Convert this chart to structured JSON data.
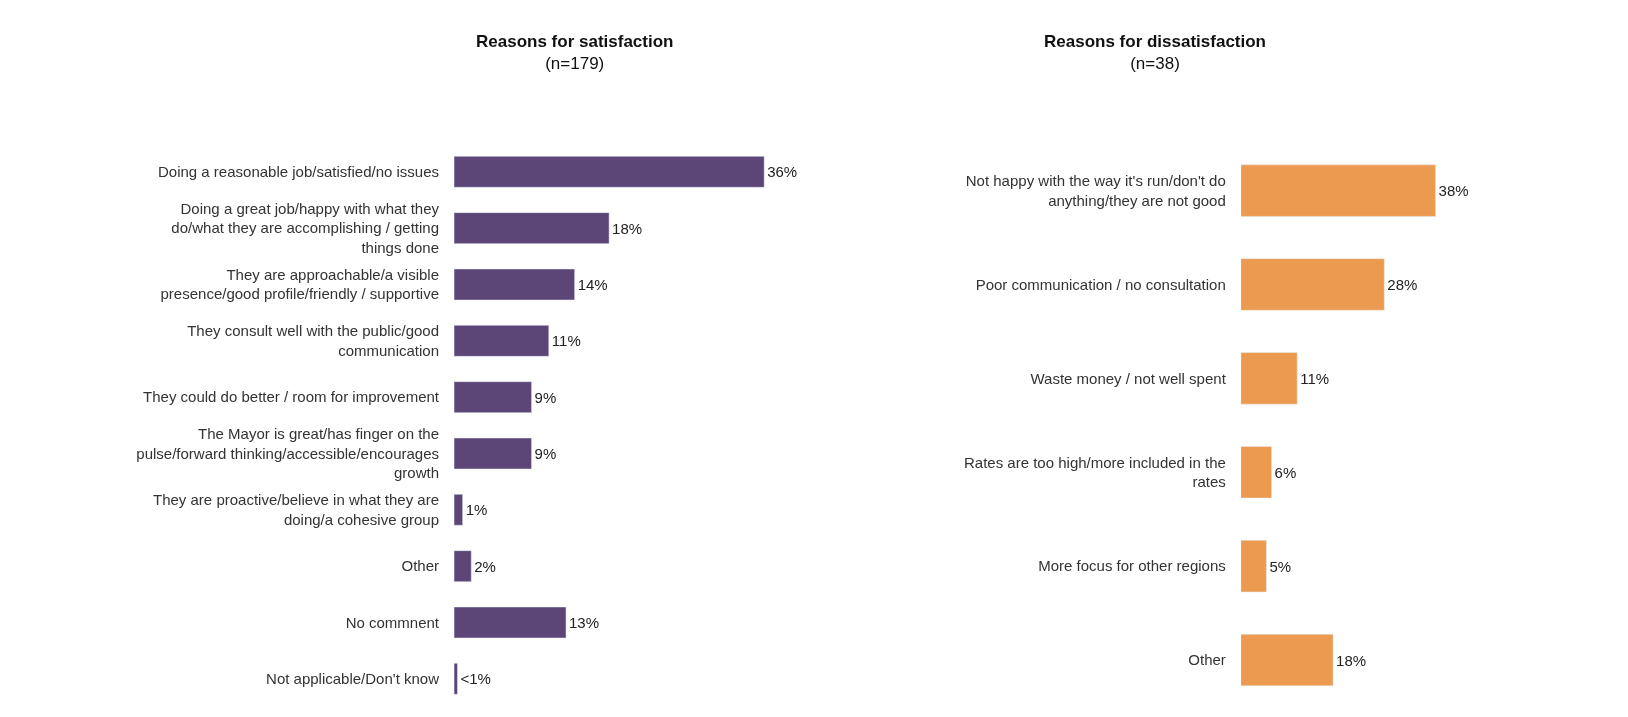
{
  "chart_data": [
    {
      "type": "bar",
      "orientation": "horizontal",
      "title": "Reasons for satisfaction",
      "subtitle": "(n=179)",
      "categories": [
        "Doing a reasonable job/satisfied/no issues",
        "Doing a great job/happy with what they do/what they are accomplishing / getting things done",
        "They are approachable/a visible presence/good profile/friendly / supportive",
        "They consult well with the public/good communication",
        "They could do better / room for improvement",
        "The Mayor is great/has finger on the pulse/forward thinking/accessible/encourages growth",
        "They are proactive/believe in what they are doing/a cohesive group",
        "Other",
        "No commnent",
        "Not applicable/Don't know"
      ],
      "values": [
        36,
        18,
        14,
        11,
        9,
        9,
        1,
        2,
        13,
        0.4
      ],
      "value_labels": [
        "36%",
        "18%",
        "14%",
        "11%",
        "9%",
        "9%",
        "1%",
        "2%",
        "13%",
        "<1%"
      ],
      "color": "#5c4677",
      "legend": false
    },
    {
      "type": "bar",
      "orientation": "horizontal",
      "title": "Reasons for dissatisfaction",
      "subtitle": "(n=38)",
      "categories": [
        "Not happy with the way it's run/don't do anything/they are not good",
        "Poor communication / no consultation",
        "Waste money / not well spent",
        "Rates are too high/more included in the rates",
        "More focus for other regions",
        "Other"
      ],
      "values": [
        38,
        28,
        11,
        6,
        5,
        18
      ],
      "value_labels": [
        "38%",
        "28%",
        "11%",
        "6%",
        "5%",
        "18%"
      ],
      "color": "#ec9a50",
      "legend": false
    }
  ]
}
